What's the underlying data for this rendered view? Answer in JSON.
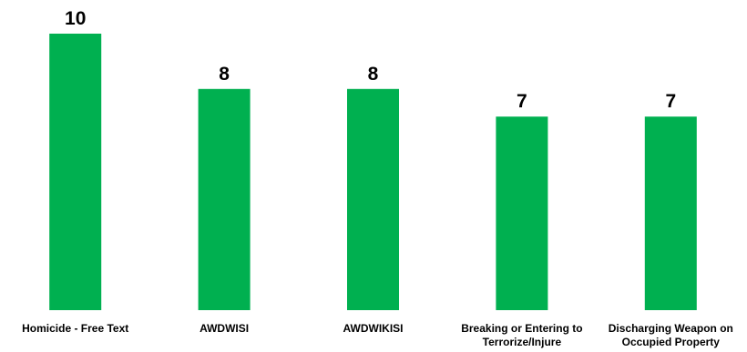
{
  "chart_data": {
    "type": "bar",
    "title": "",
    "xlabel": "",
    "ylabel": "",
    "categories": [
      [
        "Homicide - Free Text"
      ],
      [
        "AWDWISI"
      ],
      [
        "AWDWIKISI"
      ],
      [
        "Breaking or Entering to",
        "Terrorize/Injure"
      ],
      [
        "Discharging Weapon on",
        "Occupied Property"
      ]
    ],
    "values": [
      10,
      8,
      8,
      7,
      7
    ],
    "data_labels": [
      "10",
      "8",
      "8",
      "7",
      "7"
    ],
    "ylim": [
      0,
      10
    ],
    "grid": false,
    "legend": "none",
    "colors": {
      "bar": "#00b050",
      "text": "#000000",
      "background": "#ffffff"
    }
  }
}
